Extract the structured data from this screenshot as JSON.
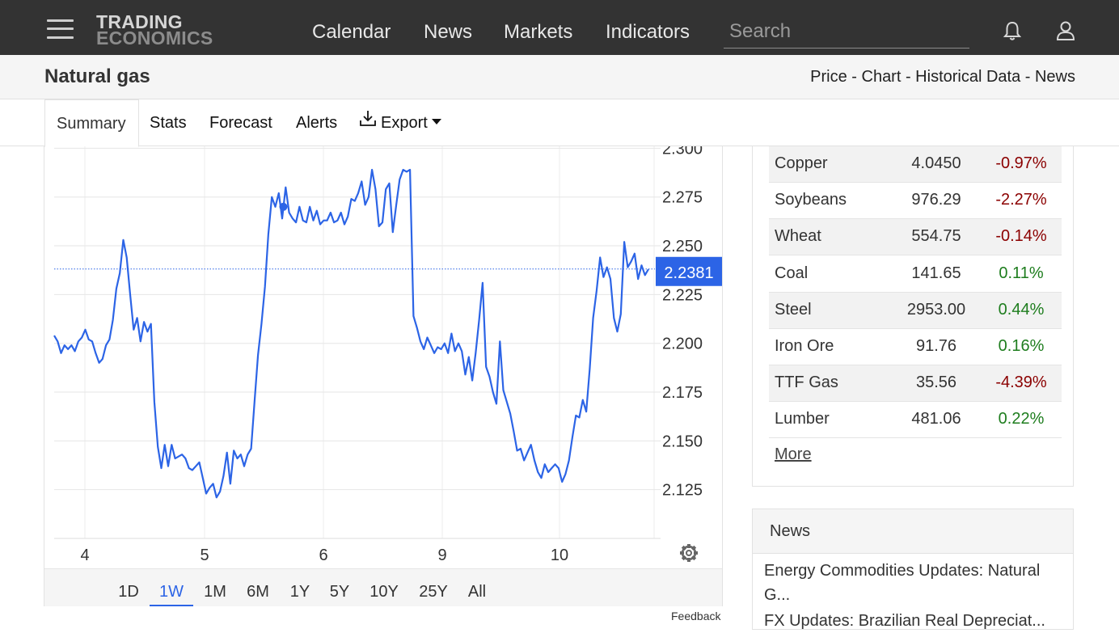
{
  "header": {
    "logo_line1": "TRADING",
    "logo_line2": "ECONOMICS",
    "nav": [
      "Calendar",
      "News",
      "Markets",
      "Indicators"
    ],
    "search_placeholder": "Search"
  },
  "titlebar": {
    "title": "Natural gas",
    "links": "Price - Chart - Historical Data - News"
  },
  "tabs": [
    "Summary",
    "Stats",
    "Forecast",
    "Alerts",
    "Export"
  ],
  "chart_data": {
    "type": "line",
    "color": "#2c64e6",
    "x_ticks": [
      "4",
      "5",
      "6",
      "9",
      "10"
    ],
    "y_ticks": [
      "2.300",
      "2.275",
      "2.250",
      "2.225",
      "2.200",
      "2.175",
      "2.150",
      "2.125"
    ],
    "ylim": [
      2.1,
      2.301
    ],
    "last_value": "2.2381",
    "grid": true,
    "y": [
      2.204,
      2.201,
      2.195,
      2.199,
      2.197,
      2.199,
      2.196,
      2.201,
      2.203,
      2.207,
      2.202,
      2.201,
      2.195,
      2.19,
      2.192,
      2.199,
      2.202,
      2.212,
      2.228,
      2.236,
      2.253,
      2.244,
      2.225,
      2.207,
      2.213,
      2.201,
      2.211,
      2.206,
      2.21,
      2.17,
      2.147,
      2.136,
      2.148,
      2.137,
      2.148,
      2.141,
      2.142,
      2.143,
      2.141,
      2.136,
      2.135,
      2.137,
      2.139,
      2.131,
      2.123,
      2.126,
      2.128,
      2.121,
      2.124,
      2.132,
      2.144,
      2.128,
      2.145,
      2.141,
      2.143,
      2.137,
      2.143,
      2.146,
      2.17,
      2.194,
      2.21,
      2.229,
      2.256,
      2.275,
      2.27,
      2.277,
      2.264,
      2.28,
      2.267,
      2.264,
      2.262,
      2.27,
      2.263,
      2.262,
      2.27,
      2.263,
      2.268,
      2.261,
      2.263,
      2.263,
      2.267,
      2.262,
      2.263,
      2.267,
      2.261,
      2.265,
      2.274,
      2.273,
      2.277,
      2.283,
      2.271,
      2.275,
      2.289,
      2.279,
      2.26,
      2.262,
      2.279,
      2.282,
      2.257,
      2.271,
      2.284,
      2.289,
      2.288,
      2.289,
      2.214,
      2.208,
      2.201,
      2.197,
      2.203,
      2.199,
      2.195,
      2.198,
      2.197,
      2.2,
      2.195,
      2.205,
      2.196,
      2.2,
      2.196,
      2.184,
      2.193,
      2.181,
      2.195,
      2.212,
      2.231,
      2.188,
      2.183,
      2.175,
      2.169,
      2.201,
      2.176,
      2.17,
      2.164,
      2.155,
      2.145,
      2.146,
      2.14,
      2.144,
      2.148,
      2.14,
      2.134,
      2.131,
      2.138,
      2.134,
      2.136,
      2.138,
      2.136,
      2.129,
      2.133,
      2.14,
      2.152,
      2.163,
      2.162,
      2.171,
      2.165,
      2.187,
      2.213,
      2.227,
      2.244,
      2.234,
      2.239,
      2.233,
      2.213,
      2.206,
      2.215,
      2.252,
      2.239,
      2.242,
      2.246,
      2.233,
      2.24,
      2.235,
      2.238
    ]
  },
  "range_buttons": [
    "1D",
    "1W",
    "1M",
    "6M",
    "1Y",
    "5Y",
    "10Y",
    "25Y",
    "All"
  ],
  "range_active": "1W",
  "feedback": "Feedback",
  "commodities": [
    {
      "name": "Copper",
      "price": "4.0450",
      "change": "-0.97%",
      "dir": "neg"
    },
    {
      "name": "Soybeans",
      "price": "976.29",
      "change": "-2.27%",
      "dir": "neg"
    },
    {
      "name": "Wheat",
      "price": "554.75",
      "change": "-0.14%",
      "dir": "neg"
    },
    {
      "name": "Coal",
      "price": "141.65",
      "change": "0.11%",
      "dir": "pos"
    },
    {
      "name": "Steel",
      "price": "2953.00",
      "change": "0.44%",
      "dir": "pos"
    },
    {
      "name": "Iron Ore",
      "price": "91.76",
      "change": "0.16%",
      "dir": "pos"
    },
    {
      "name": "TTF Gas",
      "price": "35.56",
      "change": "-4.39%",
      "dir": "neg"
    },
    {
      "name": "Lumber",
      "price": "481.06",
      "change": "0.22%",
      "dir": "pos"
    }
  ],
  "more_label": "More",
  "news": {
    "heading": "News",
    "items": [
      "Energy Commodities Updates: Natural G...",
      "FX Updates: Brazilian Real Depreciat..."
    ]
  }
}
